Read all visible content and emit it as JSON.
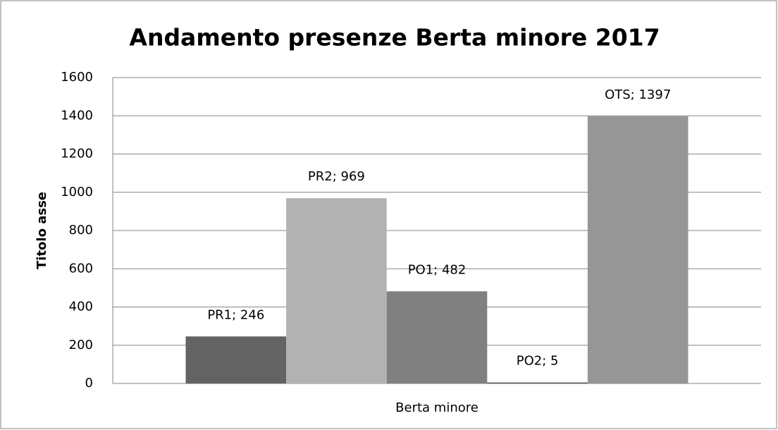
{
  "chart_data": {
    "type": "bar",
    "title": "Andamento presenze Berta minore 2017",
    "ylabel": "Titolo asse",
    "categories": [
      "Berta minore"
    ],
    "series": [
      {
        "color": "#636363",
        "values": [
          246
        ],
        "value_labels": [
          "PR1; 246"
        ]
      },
      {
        "color": "#b2b2b2",
        "values": [
          969
        ],
        "value_labels": [
          "PR2; 969"
        ]
      },
      {
        "color": "#808080",
        "values": [
          482
        ],
        "value_labels": [
          "PO1; 482"
        ]
      },
      {
        "color": "#4d4d4d",
        "values": [
          5
        ],
        "value_labels": [
          "PO2; 5"
        ]
      },
      {
        "color": "#969696",
        "values": [
          1397
        ],
        "value_labels": [
          "OTS; 1397"
        ]
      }
    ],
    "ylim": [
      0,
      1600
    ],
    "yticks": [
      0,
      200,
      400,
      600,
      800,
      1000,
      1200,
      1400,
      1600
    ],
    "grid": true
  }
}
